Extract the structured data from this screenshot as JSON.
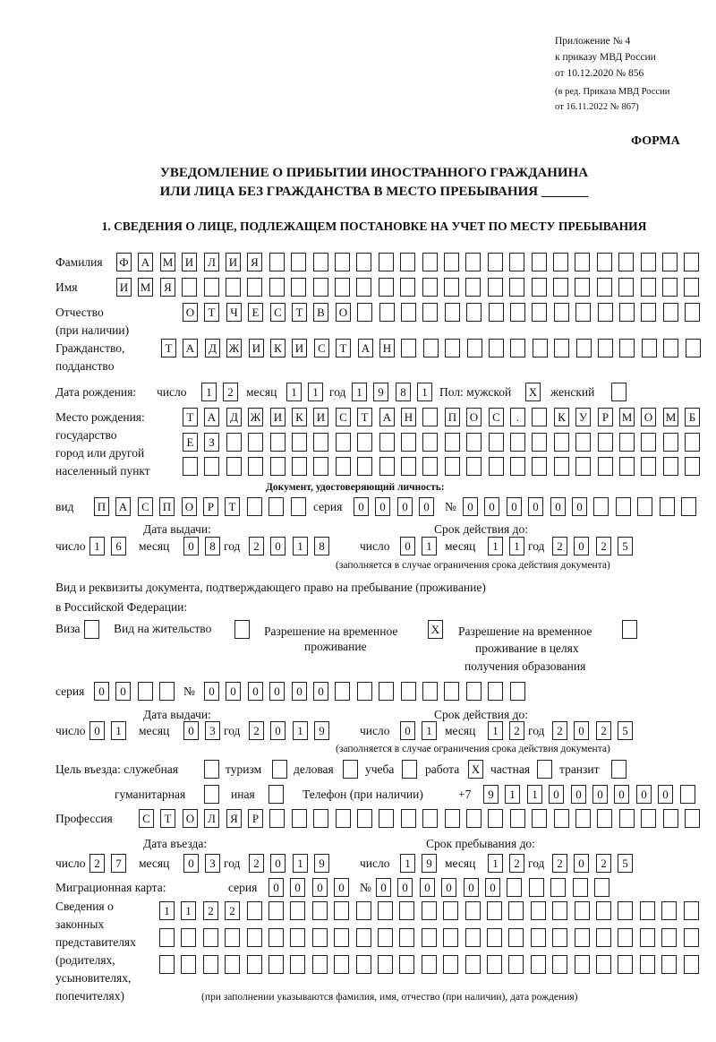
{
  "header": {
    "appendix": "Приложение № 4",
    "order": "к приказу МВД России",
    "order_date": "от 10.12.2020 № 856",
    "edition1": "(в ред. Приказа МВД России",
    "edition2": "от 16.11.2022 № 867)",
    "form_label": "ФОРМА",
    "title1": "УВЕДОМЛЕНИЕ О ПРИБЫТИИ ИНОСТРАННОГО ГРАЖДАНИНА",
    "title2": "ИЛИ ЛИЦА БЕЗ ГРАЖДАНСТВА В МЕСТО ПРЕБЫВАНИЯ _______",
    "section1": "1. СВЕДЕНИЯ О ЛИЦЕ, ПОДЛЕЖАЩЕМ ПОСТАНОВКЕ НА УЧЕТ ПО МЕСТУ ПРЕБЫВАНИЯ"
  },
  "labels": {
    "surname": "Фамилия",
    "name": "Имя",
    "patronymic": "Отчество",
    "patronymic2": "(при наличии)",
    "citizenship": "Гражданство,",
    "citizenship2": "подданство",
    "birth_date": "Дата рождения:",
    "day": "число",
    "month": "месяц",
    "year": "год",
    "sex": "Пол: мужской",
    "female": "женский",
    "birthplace1": "Место рождения:",
    "birthplace2": "государство",
    "birthplace3": "город или другой",
    "birthplace4": "населенный пункт",
    "id_doc": "Документ, удостоверяющий личность:",
    "kind": "вид",
    "series": "серия",
    "number": "№",
    "issue_date": "Дата выдачи:",
    "valid_until": "Срок действия до:",
    "validity_note": "(заполняется в случае ограничения срока действия документа)",
    "right_doc1": "Вид и реквизиты документа, подтверждающего право на пребывание (проживание)",
    "right_doc2": "в Российской Федерации:",
    "visa": "Виза",
    "residence": "Вид на жительство",
    "temp1": "Разрешение на временное",
    "temp2": "проживание",
    "edu1": "Разрешение на временное",
    "edu2": "проживание в целях",
    "edu3": "получения образования",
    "purpose": "Цель въезда: служебная",
    "tourism": "туризм",
    "business": "деловая",
    "study": "учеба",
    "work": "работа",
    "private": "частная",
    "transit": "транзит",
    "humanitarian": "гуманитарная",
    "other": "иная",
    "phone": "Телефон (при наличии)",
    "phone_prefix": "+7",
    "profession": "Профессия",
    "entry_date": "Дата въезда:",
    "stay_until": "Срок пребывания до:",
    "migration_card": "Миграционная карта:",
    "reps1": "Сведения о",
    "reps2": "законных",
    "reps3": "представителях",
    "reps4": "(родителях,",
    "reps5": "усыновителях,",
    "reps6": "попечителях)",
    "reps_note": "(при заполнении указываются фамилия, имя, отчество (при наличии), дата рождения)"
  },
  "fields": {
    "surname": "ФАМИЛИЯ",
    "name": "ИМЯ",
    "patronymic": "ОТЧЕСТВО",
    "citizenship": "ТАДЖИКИСТАН",
    "birth_day": "12",
    "birth_month": "11",
    "birth_year": "1981",
    "sex_male": "X",
    "sex_female": "",
    "birthplace1": "ТАДЖИКИСТАН ПОС. КУРМОМБ",
    "birthplace2": "ЕЗ",
    "birthplace3": "",
    "doc_kind": "ПАСПОРТ",
    "doc_series": "0000",
    "doc_number": "000000",
    "doc_issue_day": "16",
    "doc_issue_month": "08",
    "doc_issue_year": "2018",
    "doc_valid_day": "01",
    "doc_valid_month": "11",
    "doc_valid_year": "2025",
    "visa": "",
    "residence": "",
    "temp_residence": "X",
    "temp_residence_edu": "",
    "right_series": "00",
    "right_number": "000000",
    "right_issue_day": "01",
    "right_issue_month": "03",
    "right_issue_year": "2019",
    "right_valid_day": "01",
    "right_valid_month": "12",
    "right_valid_year": "2025",
    "purpose_official": "",
    "purpose_tourism": "",
    "purpose_business": "",
    "purpose_study": "",
    "purpose_work": "X",
    "purpose_private": "",
    "purpose_transit": "",
    "purpose_humanitarian": "",
    "purpose_other": "",
    "phone": "911000000",
    "profession": "СТОЛЯР",
    "entry_day": "27",
    "entry_month": "03",
    "entry_year": "2019",
    "stay_day": "19",
    "stay_month": "12",
    "stay_year": "2025",
    "mig_series": "0000",
    "mig_number": "000000",
    "reps1": "1122",
    "reps2": "",
    "reps3": ""
  }
}
